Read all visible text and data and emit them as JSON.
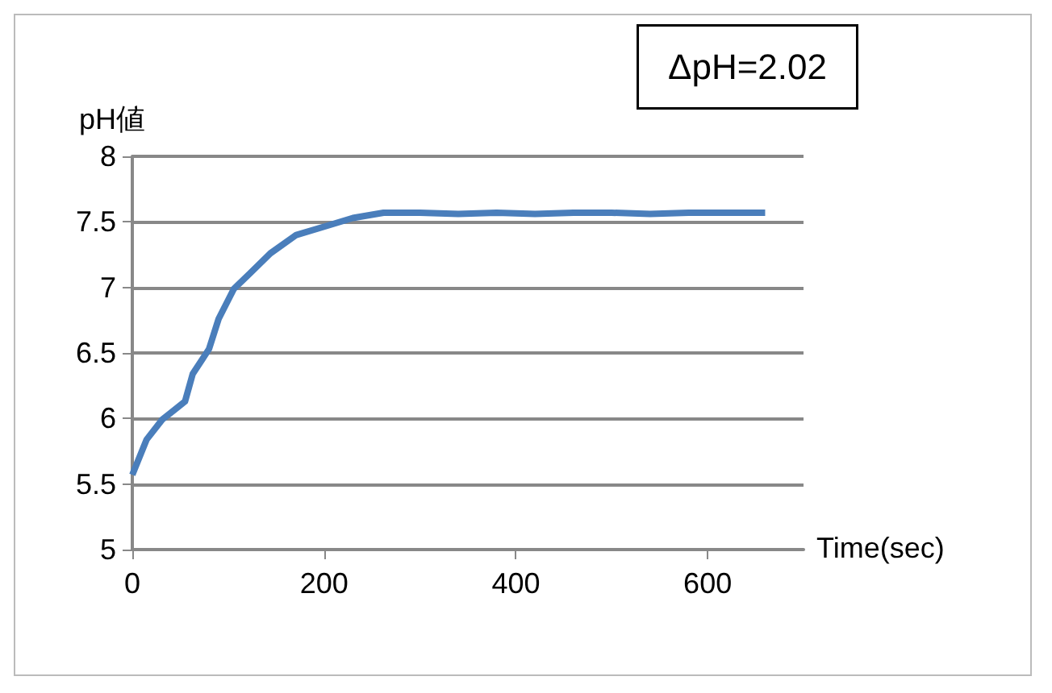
{
  "chart_data": {
    "type": "line",
    "xlabel": "Time(sec)",
    "ylabel": "pH値",
    "annotations": [
      "ΔpH=2.02"
    ],
    "x": [
      0,
      15,
      31,
      55,
      63,
      80,
      90,
      106,
      123,
      144,
      171,
      203,
      230,
      262,
      300,
      340,
      380,
      420,
      460,
      500,
      540,
      580,
      620,
      660
    ],
    "series": [
      {
        "color": "#4a7ebb",
        "values": [
          5.57,
          5.84,
          5.99,
          6.13,
          6.34,
          6.53,
          6.76,
          6.99,
          7.11,
          7.26,
          7.4,
          7.47,
          7.53,
          7.57,
          7.57,
          7.56,
          7.57,
          7.56,
          7.57,
          7.57,
          7.56,
          7.57,
          7.57,
          7.57
        ]
      }
    ],
    "xlim": [
      0,
      700
    ],
    "xticks": [
      0,
      200,
      400,
      600
    ],
    "ylim": [
      5,
      8
    ],
    "yticks": [
      5,
      5.5,
      6,
      6.5,
      7,
      7.5,
      8
    ],
    "grid": "y",
    "marker": "none",
    "line_style": "solid"
  }
}
